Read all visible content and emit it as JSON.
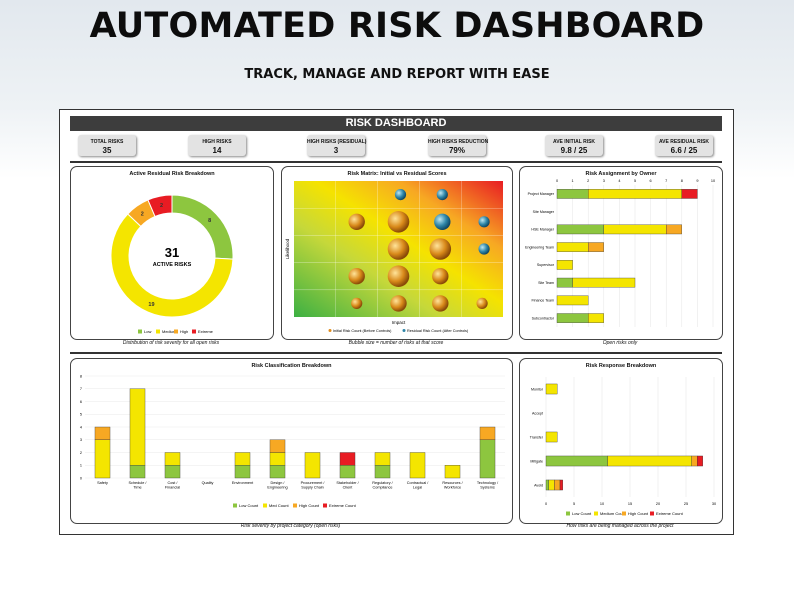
{
  "hero": {
    "title": "AUTOMATED RISK DASHBOARD",
    "subtitle": "TRACK, MANAGE AND REPORT WITH EASE"
  },
  "dashboard": {
    "title": "RISK DASHBOARD"
  },
  "kpis": [
    {
      "label": "TOTAL RISKS",
      "value": "35"
    },
    {
      "label": "HIGH RISKS",
      "value": "14"
    },
    {
      "label": "HIGH RISKS (RESIDUAL)",
      "value": "3"
    },
    {
      "label": "HIGH RISKS REDUCTION",
      "value": "79%"
    },
    {
      "label": "AVE INITIAL RISK",
      "value": "9.8 / 25"
    },
    {
      "label": "AVE RESIDUAL RISK",
      "value": "6.6 / 25"
    }
  ],
  "colors": {
    "low": "#8dc63f",
    "medium": "#f4e500",
    "high": "#f7a823",
    "extreme": "#e81c23"
  },
  "captions": {
    "donut": "Distribution of risk severity for all open risks",
    "matrix": "Bubble size = number of risks at that score",
    "owner": "Open risks only",
    "classification": "Risk severity by project category (open risks)",
    "response": "How risks are being managed across the project"
  },
  "chart_data": [
    {
      "type": "pie",
      "title": "Active Residual Risk Breakdown",
      "center_value": "31",
      "center_label": "ACTIVE RISKS",
      "slices": [
        {
          "name": "Low",
          "value": 8
        },
        {
          "name": "Medium",
          "value": 19
        },
        {
          "name": "High",
          "value": 2
        },
        {
          "name": "Extreme",
          "value": 2
        }
      ],
      "legend": [
        "Low",
        "Medium",
        "High",
        "Extreme"
      ],
      "legend_position": "bottom"
    },
    {
      "type": "scatter",
      "title": "Risk Matrix: Initial vs Residual Scores",
      "xlabel": "Impact",
      "ylabel": "Likelihood",
      "series": [
        {
          "name": "Initial Risk Count (Before Controls)",
          "points": [
            [
              2,
              2,
              2
            ],
            [
              3,
              2,
              3
            ],
            [
              3,
              3,
              3
            ],
            [
              2,
              4,
              2
            ],
            [
              3,
              4,
              3
            ],
            [
              4,
              3,
              3
            ],
            [
              2,
              1,
              1
            ],
            [
              3,
              1,
              2
            ],
            [
              4,
              1,
              2
            ],
            [
              4,
              2,
              2
            ],
            [
              5,
              1,
              1
            ]
          ]
        },
        {
          "name": "Residual Risk Count (After Controls)",
          "points": [
            [
              3,
              5,
              1
            ],
            [
              4,
              5,
              1
            ],
            [
              5,
              4,
              1
            ],
            [
              4,
              4,
              2
            ],
            [
              5,
              3,
              1
            ]
          ]
        }
      ],
      "legend_position": "bottom"
    },
    {
      "type": "bar",
      "orientation": "horizontal",
      "stacked": true,
      "title": "Risk Assignment by Owner",
      "categories": [
        "Project Manager",
        "Site Manager",
        "HSE Manager",
        "Engineering Team",
        "Supervisor",
        "Site Team",
        "Finance Team",
        "Subcontractor"
      ],
      "series": [
        {
          "name": "Low",
          "values": [
            2,
            0,
            3,
            0,
            0,
            1,
            0,
            2
          ]
        },
        {
          "name": "Medium",
          "values": [
            6,
            0,
            4,
            2,
            1,
            4,
            2,
            1
          ]
        },
        {
          "name": "High",
          "values": [
            0,
            0,
            1,
            1,
            0,
            0,
            0,
            0
          ]
        },
        {
          "name": "Extreme",
          "values": [
            1,
            0,
            0,
            0,
            0,
            0,
            0,
            0
          ]
        }
      ],
      "xlim": [
        0,
        10
      ],
      "xticks": [
        "0",
        "1",
        "2",
        "3",
        "4",
        "5",
        "6",
        "7",
        "8",
        "9",
        "10"
      ]
    },
    {
      "type": "bar",
      "stacked": true,
      "title": "Risk Classification Breakdown",
      "categories": [
        "Safety",
        "Schedule / Time",
        "Cost / Financial",
        "Quality",
        "Environment",
        "Design / Engineering",
        "Procurement / Supply Chain",
        "Stakeholder / Client",
        "Regulatory / Compliance",
        "Contractual / Legal",
        "Resources / Workforce",
        "Technology / Systems"
      ],
      "series": [
        {
          "name": "Low Count",
          "values": [
            0,
            1,
            1,
            0,
            1,
            1,
            0,
            1,
            1,
            0,
            0,
            3
          ]
        },
        {
          "name": "Med Count",
          "values": [
            3,
            6,
            1,
            0,
            1,
            1,
            2,
            0,
            1,
            2,
            1,
            0
          ]
        },
        {
          "name": "High Count",
          "values": [
            1,
            0,
            0,
            0,
            0,
            1,
            0,
            0,
            0,
            0,
            0,
            1
          ]
        },
        {
          "name": "Extreme Count",
          "values": [
            0,
            0,
            0,
            0,
            0,
            0,
            0,
            1,
            0,
            0,
            0,
            0
          ]
        }
      ],
      "ylim": [
        0,
        8
      ],
      "yticks": [
        "0",
        "1",
        "2",
        "3",
        "4",
        "5",
        "6",
        "7",
        "8"
      ],
      "legend_position": "bottom"
    },
    {
      "type": "bar",
      "orientation": "horizontal",
      "stacked": true,
      "title": "Risk Response Breakdown",
      "categories": [
        "Monitor",
        "Accept",
        "Transfer",
        "Mitigate",
        "Avoid"
      ],
      "series": [
        {
          "name": "Low Count",
          "values": [
            0,
            0,
            0,
            11,
            0.5
          ]
        },
        {
          "name": "Medium Count",
          "values": [
            2,
            0,
            2,
            15,
            1
          ]
        },
        {
          "name": "High Count",
          "values": [
            0,
            0,
            0,
            1,
            1
          ]
        },
        {
          "name": "Extreme Count",
          "values": [
            0,
            0,
            0,
            1,
            0.5
          ]
        }
      ],
      "xlim": [
        0,
        30
      ],
      "xticks": [
        "0",
        "5",
        "10",
        "15",
        "20",
        "25",
        "30"
      ],
      "legend_position": "bottom"
    }
  ]
}
